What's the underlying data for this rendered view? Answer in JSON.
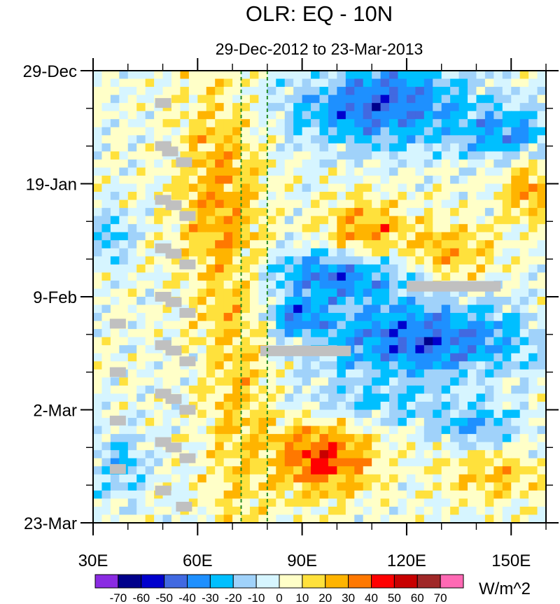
{
  "chart_data": {
    "type": "heatmap",
    "title": "OLR: EQ - 10N",
    "subtitle": "29-Dec-2012 to 23-Mar-2013",
    "x_axis": {
      "range": [
        30,
        160
      ],
      "ticks": [
        {
          "value": 30,
          "label": "30E"
        },
        {
          "value": 60,
          "label": "60E"
        },
        {
          "value": 90,
          "label": "90E"
        },
        {
          "value": 120,
          "label": "120E"
        },
        {
          "value": 150,
          "label": "150E"
        }
      ],
      "minor_step": 10
    },
    "y_axis": {
      "range_days": [
        0,
        84
      ],
      "ticks": [
        {
          "value": 0,
          "label": "29-Dec"
        },
        {
          "value": 21,
          "label": "19-Jan"
        },
        {
          "value": 42,
          "label": "9-Feb"
        },
        {
          "value": 63,
          "label": "2-Mar"
        },
        {
          "value": 84,
          "label": "23-Mar"
        }
      ],
      "minor_step": 7
    },
    "reference_lines": [
      {
        "x": 72.5,
        "color": "#238b23",
        "style": "dashed"
      },
      {
        "x": 80,
        "color": "#238b23",
        "style": "dashed"
      }
    ],
    "colorbar": {
      "units": "W/m^2",
      "levels": [
        -70,
        -60,
        -50,
        -40,
        -30,
        -20,
        -10,
        0,
        10,
        20,
        30,
        40,
        50,
        60,
        70
      ],
      "colors": [
        "#8a2be2",
        "#00008b",
        "#0000cd",
        "#4169e1",
        "#1e90ff",
        "#00bfff",
        "#a0d2fa",
        "#d6f5ff",
        "#ffffc8",
        "#ffe13c",
        "#ffb400",
        "#ff7800",
        "#ff0000",
        "#c80000",
        "#a02828",
        "#ff69b4"
      ]
    },
    "missing_color": "#c0c0c0",
    "missing_cells": [
      {
        "lon": 50,
        "day": 6
      },
      {
        "lon": 50,
        "day": 14
      },
      {
        "lon": 52,
        "day": 15
      },
      {
        "lon": 56,
        "day": 17
      },
      {
        "lon": 50,
        "day": 24
      },
      {
        "lon": 53,
        "day": 25
      },
      {
        "lon": 57,
        "day": 27
      },
      {
        "lon": 50,
        "day": 33
      },
      {
        "lon": 53,
        "day": 34
      },
      {
        "lon": 57,
        "day": 36
      },
      {
        "lon": 50,
        "day": 42
      },
      {
        "lon": 53,
        "day": 43
      },
      {
        "lon": 57,
        "day": 45
      },
      {
        "lon": 50,
        "day": 51
      },
      {
        "lon": 53,
        "day": 52
      },
      {
        "lon": 57,
        "day": 54
      },
      {
        "lon": 50,
        "day": 60
      },
      {
        "lon": 53,
        "day": 61
      },
      {
        "lon": 57,
        "day": 63
      },
      {
        "lon": 50,
        "day": 69
      },
      {
        "lon": 53,
        "day": 70
      },
      {
        "lon": 57,
        "day": 72
      },
      {
        "lon": 50,
        "day": 78
      },
      {
        "lon": 56,
        "day": 81
      },
      {
        "lon": 37,
        "day": 47
      },
      {
        "lon": 37,
        "day": 56
      },
      {
        "lon": 37,
        "day": 65
      },
      {
        "lon": 37,
        "day": 74
      }
    ],
    "missing_bars": [
      {
        "lon_start": 78,
        "lon_end": 104,
        "day": 52
      },
      {
        "lon_start": 120,
        "lon_end": 147,
        "day": 40
      }
    ],
    "features": [
      {
        "kind": "enhanced convection",
        "lon_range": [
          80,
          160
        ],
        "day_range": [
          0,
          12
        ],
        "sign": "negative"
      },
      {
        "kind": "suppressed convection",
        "lon_range": [
          60,
          90
        ],
        "day_range": [
          5,
          35
        ],
        "sign": "positive"
      },
      {
        "kind": "enhanced convection",
        "lon_range": [
          75,
          160
        ],
        "day_range": [
          35,
          60
        ],
        "sign": "negative"
      },
      {
        "kind": "suppressed convection",
        "lon_range": [
          82,
          115
        ],
        "day_range": [
          64,
          80
        ],
        "sign": "positive"
      }
    ]
  }
}
